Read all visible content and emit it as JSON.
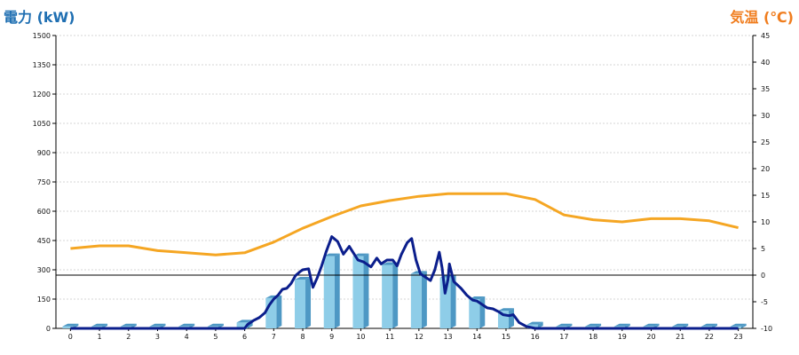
{
  "chart_data": {
    "type": "bar+line",
    "left_axis": {
      "label": "電力 (kW)",
      "min": 0,
      "max": 1500,
      "ticks": [
        "0",
        "150",
        "300",
        "450",
        "600",
        "750",
        "900",
        "1050",
        "1200",
        "1350",
        "1500"
      ]
    },
    "right_axis": {
      "label": "気温 (℃)",
      "min": -10,
      "max": 45,
      "ticks": [
        "-10",
        "-5",
        "0",
        "5",
        "10",
        "15",
        "20",
        "25",
        "30",
        "35",
        "40",
        "45"
      ]
    },
    "categories": [
      "0",
      "1",
      "2",
      "3",
      "4",
      "5",
      "6",
      "7",
      "8",
      "9",
      "10",
      "11",
      "12",
      "13",
      "14",
      "15",
      "16",
      "17",
      "18",
      "19",
      "20",
      "21",
      "22",
      "23"
    ],
    "bars": {
      "axis": "left",
      "color": "#8ecde8",
      "side_color": "#4e98c4",
      "values": [
        10,
        10,
        10,
        10,
        10,
        10,
        30,
        155,
        250,
        370,
        370,
        325,
        280,
        260,
        150,
        90,
        20,
        10,
        10,
        10,
        10,
        10,
        10,
        10
      ]
    },
    "power_line": {
      "axis": "left",
      "color": "#0b1e8c",
      "points": [
        [
          0,
          0
        ],
        [
          1,
          0
        ],
        [
          2,
          0
        ],
        [
          3,
          0
        ],
        [
          4,
          0
        ],
        [
          5,
          0
        ],
        [
          6,
          0
        ],
        [
          6.1,
          20
        ],
        [
          6.3,
          40
        ],
        [
          6.5,
          55
        ],
        [
          6.7,
          80
        ],
        [
          6.85,
          120
        ],
        [
          7,
          150
        ],
        [
          7.15,
          170
        ],
        [
          7.3,
          200
        ],
        [
          7.45,
          205
        ],
        [
          7.6,
          230
        ],
        [
          7.75,
          270
        ],
        [
          7.9,
          290
        ],
        [
          8,
          300
        ],
        [
          8.2,
          305
        ],
        [
          8.35,
          210
        ],
        [
          8.5,
          260
        ],
        [
          8.65,
          320
        ],
        [
          8.8,
          390
        ],
        [
          9,
          470
        ],
        [
          9.2,
          445
        ],
        [
          9.4,
          380
        ],
        [
          9.6,
          420
        ],
        [
          9.75,
          385
        ],
        [
          9.9,
          350
        ],
        [
          10.1,
          340
        ],
        [
          10.35,
          315
        ],
        [
          10.55,
          360
        ],
        [
          10.7,
          330
        ],
        [
          10.9,
          350
        ],
        [
          11.1,
          350
        ],
        [
          11.25,
          320
        ],
        [
          11.4,
          380
        ],
        [
          11.6,
          440
        ],
        [
          11.75,
          460
        ],
        [
          11.9,
          350
        ],
        [
          12.05,
          280
        ],
        [
          12.2,
          265
        ],
        [
          12.4,
          245
        ],
        [
          12.55,
          300
        ],
        [
          12.7,
          390
        ],
        [
          12.8,
          310
        ],
        [
          12.9,
          180
        ],
        [
          13,
          250
        ],
        [
          13.05,
          330
        ],
        [
          13.2,
          240
        ],
        [
          13.45,
          205
        ],
        [
          13.65,
          170
        ],
        [
          13.85,
          145
        ],
        [
          14,
          140
        ],
        [
          14.15,
          125
        ],
        [
          14.35,
          105
        ],
        [
          14.55,
          100
        ],
        [
          14.75,
          85
        ],
        [
          14.9,
          70
        ],
        [
          15.1,
          65
        ],
        [
          15.25,
          70
        ],
        [
          15.45,
          30
        ],
        [
          15.7,
          10
        ],
        [
          16,
          0
        ],
        [
          17,
          0
        ],
        [
          18,
          0
        ],
        [
          19,
          0
        ],
        [
          20,
          0
        ],
        [
          21,
          0
        ],
        [
          22,
          0
        ],
        [
          23,
          0
        ]
      ]
    },
    "temperature_line": {
      "axis": "right",
      "color": "#f5a623",
      "points": [
        [
          0,
          5
        ],
        [
          1,
          5.5
        ],
        [
          2,
          5.5
        ],
        [
          3,
          4.6
        ],
        [
          4,
          4.2
        ],
        [
          5,
          3.8
        ],
        [
          6,
          4.2
        ],
        [
          7,
          6.2
        ],
        [
          8,
          8.8
        ],
        [
          9,
          11
        ],
        [
          10,
          13
        ],
        [
          11,
          14
        ],
        [
          12,
          14.8
        ],
        [
          13,
          15.3
        ],
        [
          14,
          15.3
        ],
        [
          15,
          15.3
        ],
        [
          16,
          14.2
        ],
        [
          17,
          11.3
        ],
        [
          18,
          10.4
        ],
        [
          19,
          10
        ],
        [
          20,
          10.6
        ],
        [
          21,
          10.6
        ],
        [
          22,
          10.2
        ],
        [
          23,
          8.9
        ]
      ]
    },
    "zero_line": {
      "axis": "right",
      "value": 0
    },
    "grid": "horizontal dashed"
  }
}
